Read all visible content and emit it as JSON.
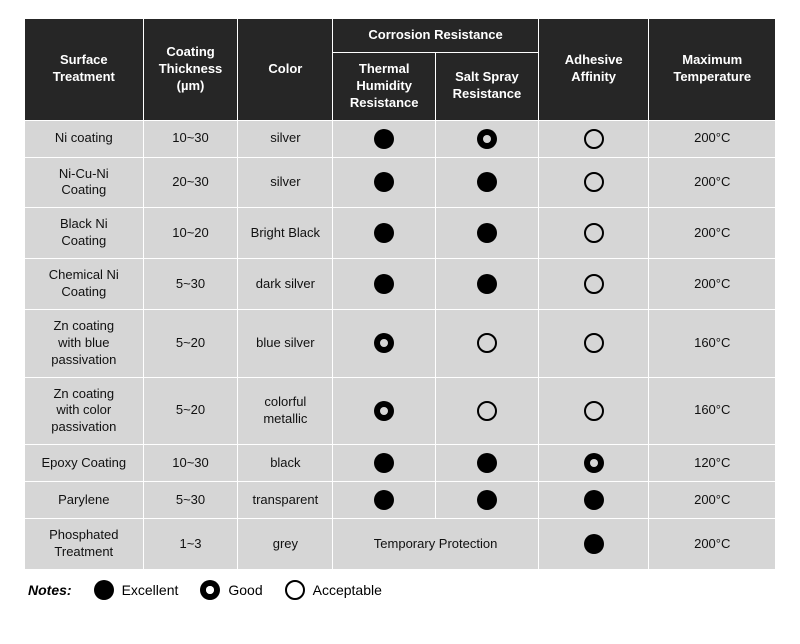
{
  "colors": {
    "header_bg": "#262626",
    "header_fg": "#ffffff",
    "row_bg": "#d6d6d6",
    "border": "#ffffff",
    "symbol": "#000000"
  },
  "headers": {
    "treatment": "Surface Treatment",
    "thickness": "Coating Thickness (µm)",
    "color": "Color",
    "corrosion_group": "Corrosion Resistance",
    "thermal": "Thermal Humidity Resistance",
    "salt": "Salt Spray Resistance",
    "adhesive": "Adhesive Affinity",
    "maxtemp": "Maximum Temperature"
  },
  "rows": [
    {
      "treatment": "Ni coating",
      "thickness": "10~30",
      "color": "silver",
      "thermal": "excellent",
      "salt": "good",
      "adhesive": "acceptable",
      "maxtemp": "200°C"
    },
    {
      "treatment": "Ni-Cu-Ni Coating",
      "thickness": "20~30",
      "color": "silver",
      "thermal": "excellent",
      "salt": "excellent",
      "adhesive": "acceptable",
      "maxtemp": "200°C"
    },
    {
      "treatment": "Black Ni Coating",
      "thickness": "10~20",
      "color": "Bright Black",
      "thermal": "excellent",
      "salt": "excellent",
      "adhesive": "acceptable",
      "maxtemp": "200°C"
    },
    {
      "treatment": "Chemical Ni Coating",
      "thickness": "5~30",
      "color": "dark silver",
      "thermal": "excellent",
      "salt": "excellent",
      "adhesive": "acceptable",
      "maxtemp": "200°C"
    },
    {
      "treatment": "Zn coating with blue passivation",
      "thickness": "5~20",
      "color": "blue silver",
      "thermal": "good",
      "salt": "acceptable",
      "adhesive": "acceptable",
      "maxtemp": "160°C"
    },
    {
      "treatment": "Zn coating with color passivation",
      "thickness": "5~20",
      "color": "colorful metallic",
      "thermal": "good",
      "salt": "acceptable",
      "adhesive": "acceptable",
      "maxtemp": "160°C"
    },
    {
      "treatment": "Epoxy Coating",
      "thickness": "10~30",
      "color": "black",
      "thermal": "excellent",
      "salt": "excellent",
      "adhesive": "good",
      "maxtemp": "120°C"
    },
    {
      "treatment": "Parylene",
      "thickness": "5~30",
      "color": "transparent",
      "thermal": "excellent",
      "salt": "excellent",
      "adhesive": "excellent",
      "maxtemp": "200°C"
    },
    {
      "treatment": "Phosphated Treatment",
      "thickness": "1~3",
      "color": "grey",
      "corrosion_merged": "Temporary Protection",
      "adhesive": "excellent",
      "maxtemp": "200°C"
    }
  ],
  "legend": {
    "label": "Notes:",
    "items": [
      {
        "symbol": "excellent",
        "text": "Excellent"
      },
      {
        "symbol": "good",
        "text": "Good"
      },
      {
        "symbol": "acceptable",
        "text": "Acceptable"
      }
    ]
  },
  "symbol_map": {
    "excellent": "circle-filled",
    "good": "circle-donut",
    "acceptable": "circle-outline"
  }
}
